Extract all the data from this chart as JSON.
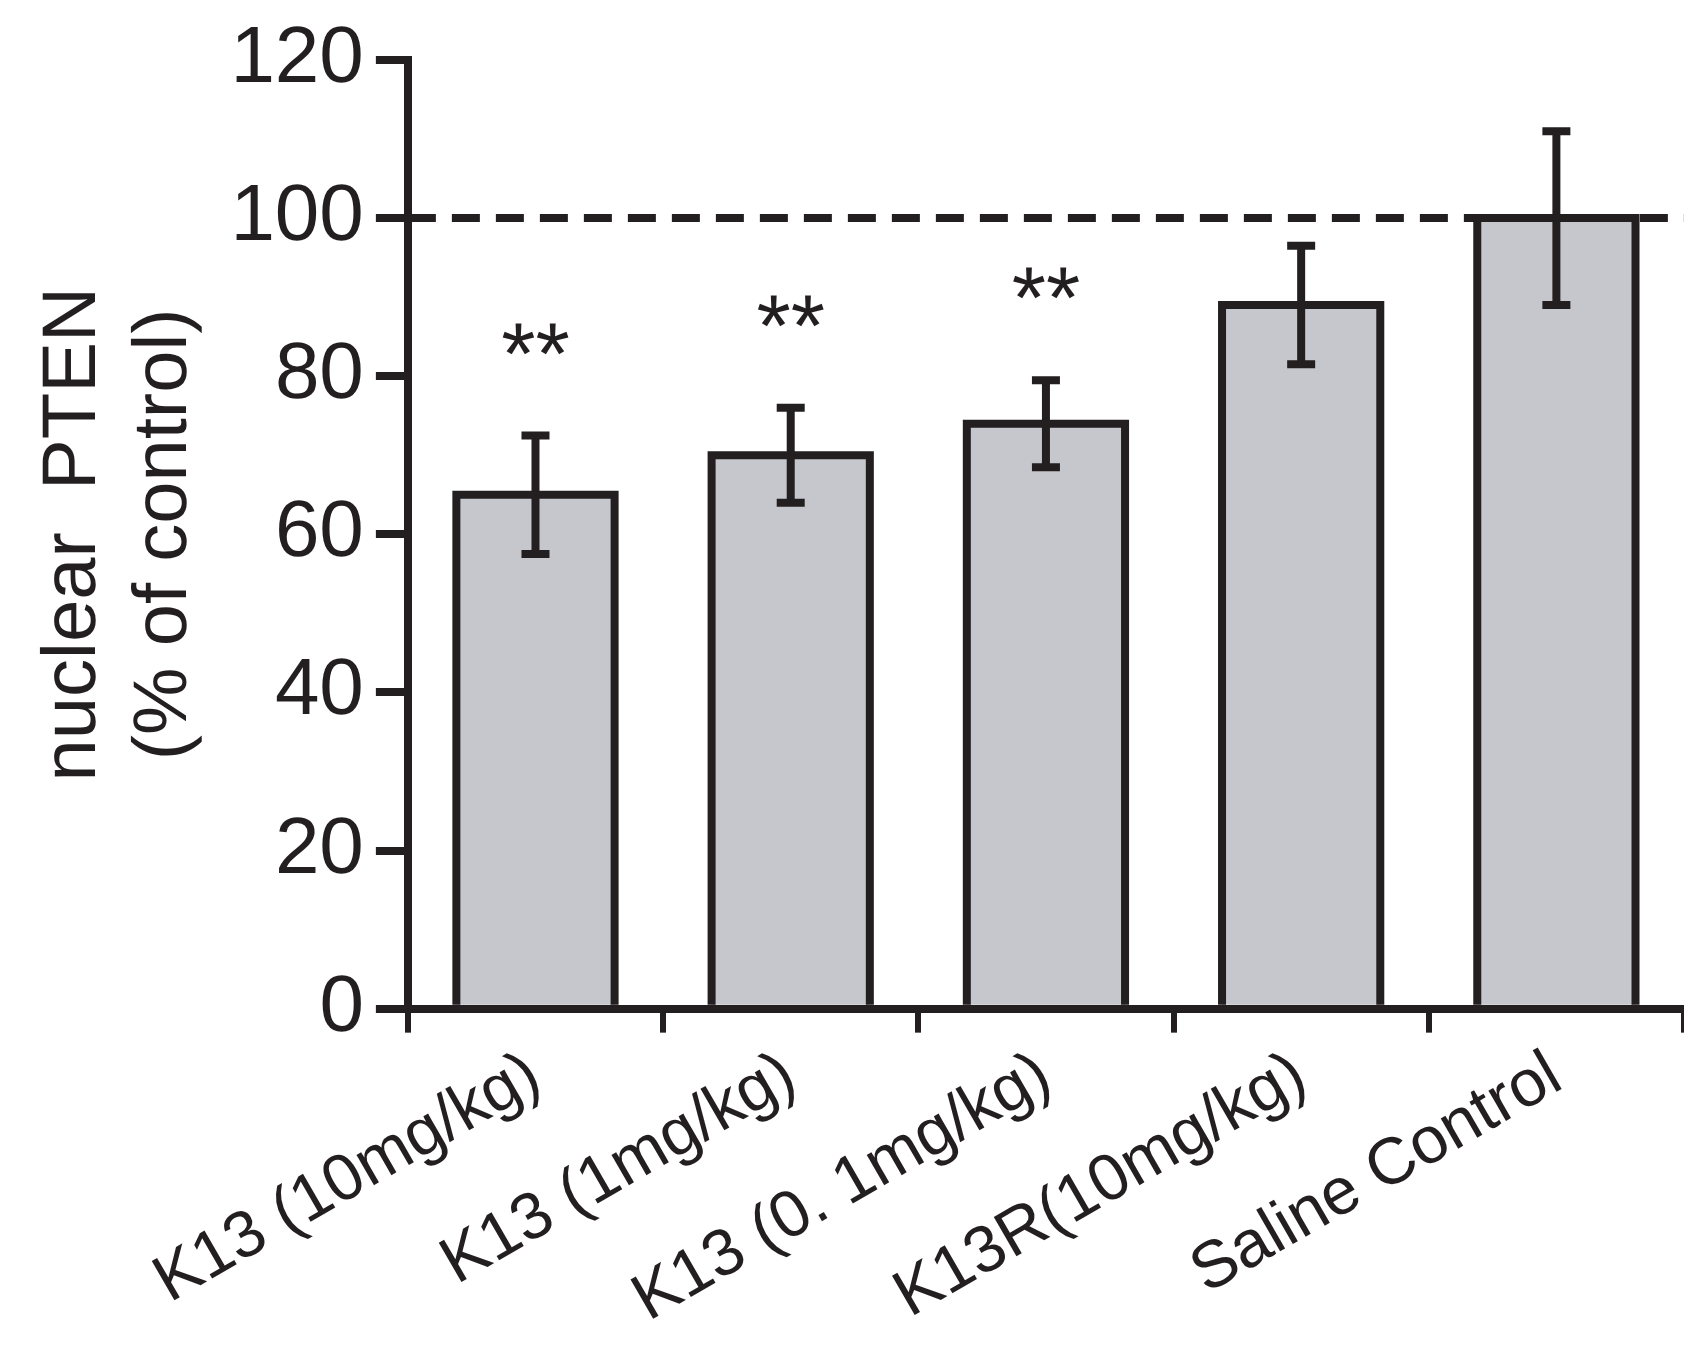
{
  "chart_data": {
    "type": "bar",
    "ylabel": "nuclear  PTEN\n(% of control)",
    "categories": [
      "K13 (10mg/kg)",
      "K13 (1mg/kg)",
      "K13 (0. 1mg/kg)",
      "K13R(10mg/kg)",
      "Saline Control"
    ],
    "values": [
      65,
      70,
      74,
      89,
      100
    ],
    "errors": [
      7.5,
      6,
      5.5,
      7.5,
      11
    ],
    "color": "#c6c7cc",
    "ylim": [
      0,
      120
    ],
    "yticks": [
      0,
      20,
      40,
      60,
      80,
      100,
      120
    ],
    "grid": false,
    "legend": false,
    "ref_lines": [
      {
        "axis": "y",
        "value": 100,
        "line_style": "dashed",
        "color": "#231f20"
      }
    ],
    "annotations": [
      "**",
      "**",
      "**"
    ]
  }
}
